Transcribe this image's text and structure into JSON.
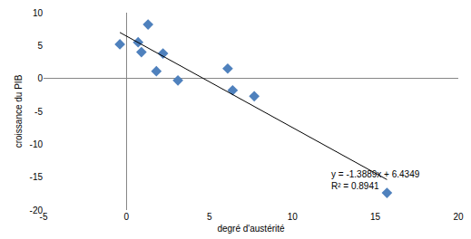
{
  "chart_data": {
    "type": "scatter",
    "x_label": "degré d'austérité",
    "y_label": "croissance du PIB",
    "xlim": [
      -5,
      20
    ],
    "xticks": [
      -5,
      0,
      5,
      10,
      15,
      20
    ],
    "ylim": [
      -20,
      10
    ],
    "yticks": [
      -20,
      -15,
      -10,
      -5,
      0,
      5,
      10
    ],
    "grid": false,
    "annotations": [
      "y = -1.3889x + 6.4349",
      "R² = 0.8941"
    ],
    "series": [
      {
        "type": "scatter",
        "marker": "diamond",
        "color": "#4f81bd",
        "x": [
          -0.4,
          0.7,
          0.9,
          1.3,
          1.8,
          2.2,
          3.1,
          6.1,
          6.4,
          7.7,
          15.7
        ],
        "values": [
          5.2,
          5.5,
          4.0,
          8.2,
          1.1,
          3.8,
          -0.3,
          1.5,
          -1.8,
          -2.7,
          -17.4
        ]
      },
      {
        "type": "line",
        "line_style": "solid",
        "color": "#000000",
        "x": [
          -0.4,
          15.7
        ],
        "values": [
          6.99,
          -15.37
        ]
      }
    ]
  }
}
